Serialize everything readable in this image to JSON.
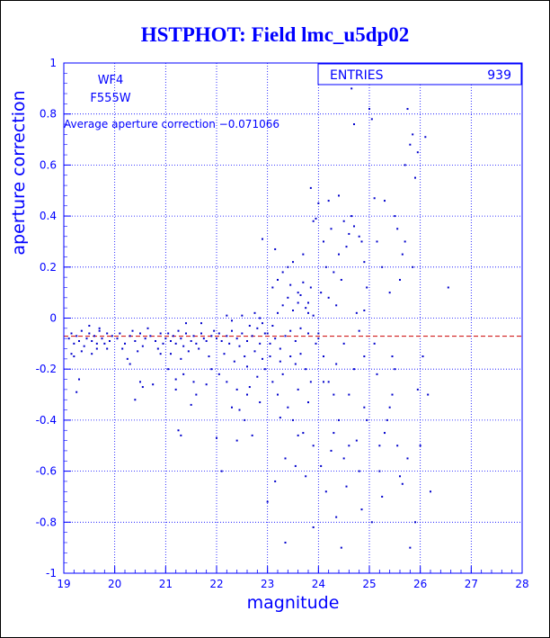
{
  "chart_data": {
    "type": "scatter",
    "title": "HSTPHOT: Field lmc_u5dp02",
    "xlabel": "magnitude",
    "ylabel": "aperture correction",
    "xlim": [
      19,
      28
    ],
    "ylim": [
      -1,
      1
    ],
    "x_ticks": [
      "19",
      "20",
      "21",
      "22",
      "23",
      "24",
      "25",
      "26",
      "27",
      "28"
    ],
    "y_ticks": [
      "-1",
      "-0.8",
      "-0.6",
      "-0.4",
      "-0.2",
      "0",
      "0.2",
      "0.4",
      "0.6",
      "0.8",
      "1"
    ],
    "grid": true,
    "stats": {
      "label": "ENTRIES",
      "value": "939"
    },
    "annotations": {
      "chip": "WF4",
      "filter": "F555W",
      "average_text": "Average aperture correction −0.071066"
    },
    "average_line": -0.071066,
    "colors": {
      "axes": "#0000ff",
      "points": "#0000cc",
      "title": "#0000ff",
      "average_line": "#cc0000"
    },
    "series": [
      {
        "points": [
          [
            19.1,
            -0.08
          ],
          [
            19.15,
            -0.06
          ],
          [
            19.2,
            -0.1
          ],
          [
            19.25,
            -0.07
          ],
          [
            19.3,
            -0.09
          ],
          [
            19.35,
            -0.05
          ],
          [
            19.4,
            -0.11
          ],
          [
            19.45,
            -0.08
          ],
          [
            19.5,
            -0.06
          ],
          [
            19.55,
            -0.09
          ],
          [
            19.6,
            -0.07
          ],
          [
            19.65,
            -0.12
          ],
          [
            19.7,
            -0.05
          ],
          [
            19.75,
            -0.08
          ],
          [
            19.8,
            -0.1
          ],
          [
            19.85,
            -0.06
          ],
          [
            19.9,
            -0.09
          ],
          [
            19.95,
            -0.07
          ],
          [
            19.2,
            -0.15
          ],
          [
            19.35,
            -0.13
          ],
          [
            19.55,
            -0.14
          ],
          [
            19.7,
            -0.04
          ],
          [
            19.85,
            -0.12
          ],
          [
            19.3,
            -0.24
          ],
          [
            19.25,
            -0.29
          ],
          [
            19.15,
            -0.14
          ],
          [
            19.5,
            -0.03
          ],
          [
            19.65,
            -0.1
          ],
          [
            20.05,
            -0.08
          ],
          [
            20.1,
            -0.06
          ],
          [
            20.2,
            -0.1
          ],
          [
            20.3,
            -0.07
          ],
          [
            20.35,
            -0.05
          ],
          [
            20.4,
            -0.09
          ],
          [
            20.5,
            -0.06
          ],
          [
            20.55,
            -0.11
          ],
          [
            20.6,
            -0.08
          ],
          [
            20.7,
            -0.07
          ],
          [
            20.8,
            -0.09
          ],
          [
            20.9,
            -0.06
          ],
          [
            20.95,
            -0.1
          ],
          [
            20.15,
            -0.12
          ],
          [
            20.45,
            -0.13
          ],
          [
            20.65,
            -0.04
          ],
          [
            20.85,
            -0.12
          ],
          [
            20.25,
            -0.16
          ],
          [
            20.5,
            -0.25
          ],
          [
            20.55,
            -0.27
          ],
          [
            20.4,
            -0.32
          ],
          [
            20.75,
            -0.26
          ],
          [
            20.3,
            -0.18
          ],
          [
            20.9,
            -0.14
          ],
          [
            21.0,
            -0.08
          ],
          [
            21.05,
            -0.06
          ],
          [
            21.1,
            -0.09
          ],
          [
            21.15,
            -0.07
          ],
          [
            21.2,
            -0.1
          ],
          [
            21.25,
            -0.05
          ],
          [
            21.3,
            -0.08
          ],
          [
            21.35,
            -0.11
          ],
          [
            21.4,
            -0.06
          ],
          [
            21.5,
            -0.09
          ],
          [
            21.55,
            -0.07
          ],
          [
            21.6,
            -0.1
          ],
          [
            21.7,
            -0.06
          ],
          [
            21.75,
            -0.08
          ],
          [
            21.8,
            -0.09
          ],
          [
            21.9,
            -0.07
          ],
          [
            21.95,
            -0.05
          ],
          [
            21.1,
            -0.14
          ],
          [
            21.3,
            -0.16
          ],
          [
            21.45,
            -0.13
          ],
          [
            21.65,
            -0.12
          ],
          [
            21.85,
            -0.15
          ],
          [
            21.2,
            -0.28
          ],
          [
            21.35,
            -0.22
          ],
          [
            21.55,
            -0.25
          ],
          [
            21.3,
            -0.46
          ],
          [
            21.25,
            -0.44
          ],
          [
            21.6,
            -0.3
          ],
          [
            21.5,
            -0.34
          ],
          [
            21.05,
            -0.2
          ],
          [
            21.9,
            -0.2
          ],
          [
            21.7,
            -0.02
          ],
          [
            21.4,
            -0.02
          ],
          [
            21.8,
            -0.26
          ],
          [
            21.2,
            -0.24
          ],
          [
            22.0,
            -0.08
          ],
          [
            22.05,
            -0.06
          ],
          [
            22.1,
            -0.09
          ],
          [
            22.2,
            -0.07
          ],
          [
            22.25,
            -0.1
          ],
          [
            22.3,
            -0.05
          ],
          [
            22.4,
            -0.08
          ],
          [
            22.45,
            -0.11
          ],
          [
            22.5,
            -0.06
          ],
          [
            22.6,
            -0.09
          ],
          [
            22.65,
            -0.03
          ],
          [
            22.7,
            -0.07
          ],
          [
            22.8,
            -0.04
          ],
          [
            22.85,
            -0.1
          ],
          [
            22.9,
            -0.02
          ],
          [
            22.95,
            -0.06
          ],
          [
            22.15,
            -0.14
          ],
          [
            22.35,
            -0.17
          ],
          [
            22.55,
            -0.15
          ],
          [
            22.75,
            -0.13
          ],
          [
            22.9,
            -0.16
          ],
          [
            22.05,
            -0.22
          ],
          [
            22.2,
            -0.25
          ],
          [
            22.4,
            -0.28
          ],
          [
            22.6,
            -0.3
          ],
          [
            22.8,
            -0.23
          ],
          [
            22.3,
            -0.35
          ],
          [
            22.55,
            -0.4
          ],
          [
            22.0,
            -0.47
          ],
          [
            22.4,
            -0.48
          ],
          [
            22.7,
            -0.46
          ],
          [
            22.85,
            -0.33
          ],
          [
            22.1,
            -0.6
          ],
          [
            22.45,
            -0.36
          ],
          [
            22.65,
            -0.27
          ],
          [
            22.95,
            -0.2
          ],
          [
            22.9,
            0.31
          ],
          [
            22.2,
            0.01
          ],
          [
            22.5,
            0.01
          ],
          [
            22.75,
            0.02
          ],
          [
            22.3,
            -0.01
          ],
          [
            22.85,
            0.0
          ],
          [
            22.6,
            -0.19
          ],
          [
            23.0,
            -0.06
          ],
          [
            23.05,
            -0.1
          ],
          [
            23.1,
            -0.03
          ],
          [
            23.15,
            -0.08
          ],
          [
            23.2,
            0.02
          ],
          [
            23.25,
            -0.12
          ],
          [
            23.3,
            0.05
          ],
          [
            23.35,
            -0.07
          ],
          [
            23.4,
            0.08
          ],
          [
            23.45,
            -0.15
          ],
          [
            23.5,
            0.03
          ],
          [
            23.55,
            -0.18
          ],
          [
            23.6,
            0.1
          ],
          [
            23.65,
            -0.04
          ],
          [
            23.7,
            0.14
          ],
          [
            23.75,
            -0.2
          ],
          [
            23.8,
            0.06
          ],
          [
            23.85,
            -0.25
          ],
          [
            23.9,
            0.01
          ],
          [
            23.95,
            -0.1
          ],
          [
            23.1,
            0.12
          ],
          [
            23.2,
            0.15
          ],
          [
            23.3,
            0.18
          ],
          [
            23.4,
            0.2
          ],
          [
            23.5,
            0.22
          ],
          [
            23.6,
            0.06
          ],
          [
            23.7,
            0.25
          ],
          [
            23.8,
            0.02
          ],
          [
            23.1,
            -0.25
          ],
          [
            23.2,
            -0.3
          ],
          [
            23.3,
            -0.22
          ],
          [
            23.4,
            -0.35
          ],
          [
            23.5,
            -0.4
          ],
          [
            23.6,
            -0.28
          ],
          [
            23.7,
            -0.45
          ],
          [
            23.8,
            -0.33
          ],
          [
            23.9,
            -0.5
          ],
          [
            23.05,
            -0.15
          ],
          [
            23.25,
            -0.17
          ],
          [
            23.45,
            -0.05
          ],
          [
            23.65,
            0.09
          ],
          [
            23.85,
            0.12
          ],
          [
            23.0,
            -0.72
          ],
          [
            23.15,
            -0.64
          ],
          [
            23.35,
            -0.88
          ],
          [
            23.55,
            -0.58
          ],
          [
            23.75,
            -0.62
          ],
          [
            23.9,
            -0.82
          ],
          [
            23.85,
            0.51
          ],
          [
            23.95,
            0.39
          ],
          [
            23.6,
            -0.46
          ],
          [
            23.35,
            -0.55
          ],
          [
            23.15,
            0.27
          ],
          [
            23.45,
            0.13
          ],
          [
            23.75,
            0.04
          ],
          [
            23.55,
            -0.09
          ],
          [
            23.25,
            -0.39
          ],
          [
            23.65,
            -0.14
          ],
          [
            23.9,
            0.38
          ],
          [
            23.8,
            -0.06
          ],
          [
            24.0,
            -0.06
          ],
          [
            24.05,
            0.1
          ],
          [
            24.1,
            -0.15
          ],
          [
            24.15,
            0.2
          ],
          [
            24.2,
            -0.25
          ],
          [
            24.25,
            0.35
          ],
          [
            24.3,
            -0.3
          ],
          [
            24.35,
            0.05
          ],
          [
            24.4,
            -0.4
          ],
          [
            24.45,
            0.15
          ],
          [
            24.5,
            -0.1
          ],
          [
            24.55,
            0.28
          ],
          [
            24.6,
            -0.5
          ],
          [
            24.65,
            0.4
          ],
          [
            24.7,
            -0.2
          ],
          [
            24.75,
            0.02
          ],
          [
            24.8,
            -0.6
          ],
          [
            24.85,
            0.3
          ],
          [
            24.9,
            -0.35
          ],
          [
            24.95,
            0.12
          ],
          [
            24.0,
            0.45
          ],
          [
            24.1,
            0.3
          ],
          [
            24.2,
            0.46
          ],
          [
            24.3,
            -0.45
          ],
          [
            24.4,
            0.25
          ],
          [
            24.5,
            0.38
          ],
          [
            24.6,
            -0.3
          ],
          [
            24.7,
            0.36
          ],
          [
            24.8,
            -0.05
          ],
          [
            24.9,
            0.22
          ],
          [
            24.05,
            -0.58
          ],
          [
            24.15,
            -0.68
          ],
          [
            24.25,
            -0.52
          ],
          [
            24.35,
            -0.78
          ],
          [
            24.45,
            -0.9
          ],
          [
            24.55,
            -0.66
          ],
          [
            24.65,
            0.9
          ],
          [
            24.75,
            -0.48
          ],
          [
            24.85,
            -0.75
          ],
          [
            24.95,
            -0.4
          ],
          [
            24.7,
            0.76
          ],
          [
            24.8,
            0.32
          ],
          [
            24.9,
            -0.15
          ],
          [
            24.4,
            0.48
          ],
          [
            24.1,
            -0.25
          ],
          [
            24.2,
            0.08
          ],
          [
            24.3,
            0.18
          ],
          [
            24.5,
            -0.55
          ],
          [
            24.6,
            0.33
          ],
          [
            24.0,
            -0.08
          ],
          [
            24.9,
            0.03
          ],
          [
            24.35,
            -0.18
          ],
          [
            25.0,
            0.82
          ],
          [
            25.05,
            0.78
          ],
          [
            25.1,
            -0.1
          ],
          [
            25.15,
            0.3
          ],
          [
            25.2,
            -0.6
          ],
          [
            25.25,
            0.2
          ],
          [
            25.3,
            -0.45
          ],
          [
            25.4,
            0.1
          ],
          [
            25.45,
            -0.3
          ],
          [
            25.5,
            0.4
          ],
          [
            25.55,
            -0.5
          ],
          [
            25.6,
            0.15
          ],
          [
            25.65,
            -0.65
          ],
          [
            25.7,
            0.6
          ],
          [
            25.75,
            -0.55
          ],
          [
            25.8,
            0.68
          ],
          [
            25.85,
            0.72
          ],
          [
            25.9,
            0.55
          ],
          [
            25.95,
            -0.28
          ],
          [
            25.1,
            0.47
          ],
          [
            25.3,
            0.46
          ],
          [
            25.5,
            -0.2
          ],
          [
            25.7,
            0.3
          ],
          [
            25.9,
            -0.8
          ],
          [
            25.2,
            -0.5
          ],
          [
            25.4,
            -0.35
          ],
          [
            25.6,
            -0.62
          ],
          [
            25.8,
            -0.9
          ],
          [
            25.85,
            0.2
          ],
          [
            25.75,
            0.82
          ],
          [
            25.35,
            -0.4
          ],
          [
            25.65,
            0.25
          ],
          [
            25.95,
            0.65
          ],
          [
            25.05,
            -0.8
          ],
          [
            25.25,
            -0.7
          ],
          [
            25.45,
            -0.15
          ],
          [
            25.55,
            0.35
          ],
          [
            25.15,
            -0.22
          ],
          [
            26.1,
            0.71
          ],
          [
            26.0,
            -0.5
          ],
          [
            26.2,
            -0.68
          ],
          [
            26.55,
            0.12
          ],
          [
            26.05,
            -0.15
          ],
          [
            26.15,
            -0.3
          ]
        ]
      }
    ]
  }
}
